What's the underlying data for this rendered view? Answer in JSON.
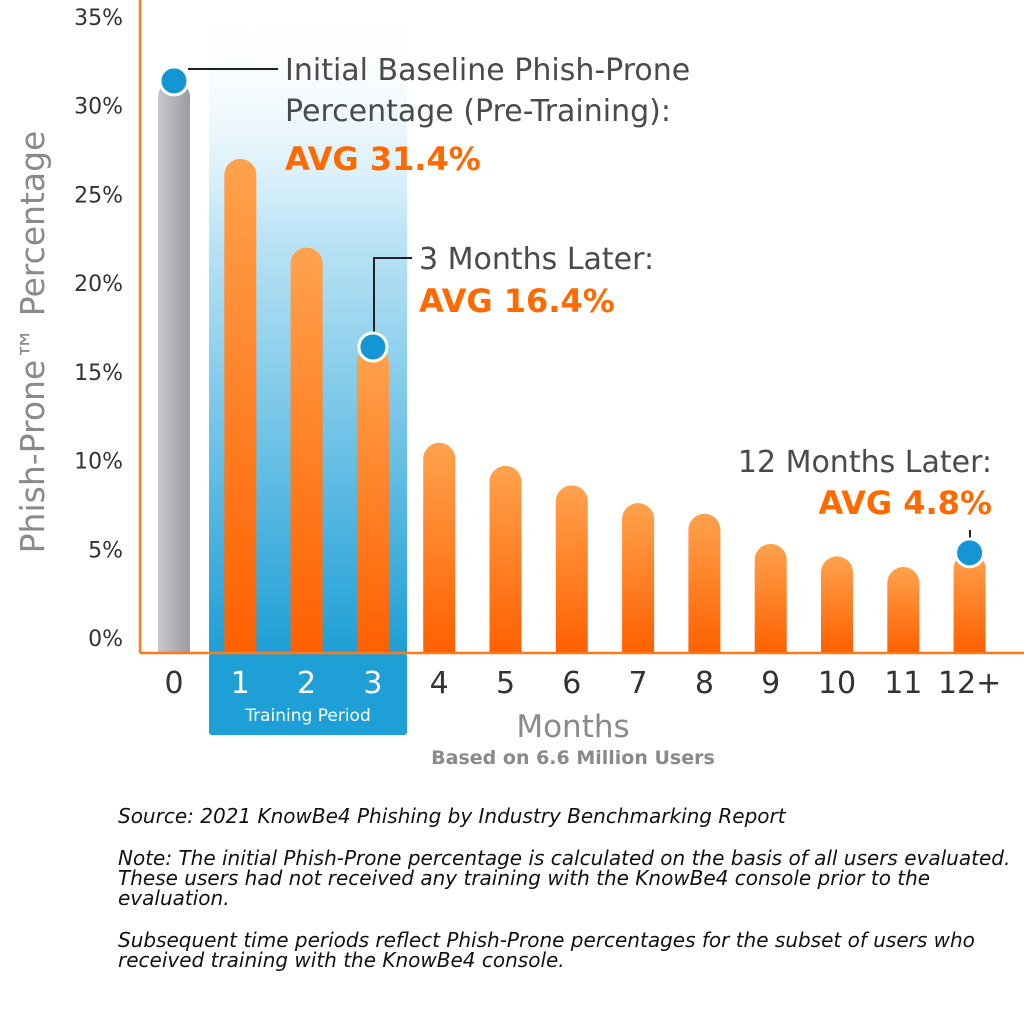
{
  "chart_data": {
    "type": "bar",
    "ylabel": "Phish-Prone™ Percentage",
    "xlabel": "Months",
    "subtitle": "Based on 6.6 Million Users",
    "ylim": [
      0,
      35
    ],
    "yticks": [
      "0%",
      "5%",
      "10%",
      "15%",
      "20%",
      "25%",
      "30%",
      "35%"
    ],
    "categories": [
      "0",
      "1",
      "2",
      "3",
      "4",
      "5",
      "6",
      "7",
      "8",
      "9",
      "10",
      "11",
      "12+"
    ],
    "values": [
      31.4,
      27.0,
      22.0,
      16.4,
      11.0,
      9.7,
      8.6,
      7.6,
      7.0,
      5.3,
      4.6,
      4.0,
      4.8
    ],
    "highlight_band": {
      "label": "Training Period",
      "categories": [
        "1",
        "2",
        "3"
      ]
    },
    "colors": {
      "baseline": "#a4a6aa",
      "bar": "#ff6a00",
      "band": "#1e9fd6",
      "marker": "#1496d4",
      "axis": "#ff7a1a"
    },
    "annotations": [
      {
        "category": "0",
        "lines": [
          "Initial Baseline Phish-Prone",
          "Percentage (Pre-Training):"
        ],
        "value_text": "AVG 31.4%"
      },
      {
        "category": "3",
        "lines": [
          "3 Months Later:"
        ],
        "value_text": "AVG 16.4%"
      },
      {
        "category": "12+",
        "lines": [
          "12 Months Later:"
        ],
        "value_text": "AVG 4.8%"
      }
    ]
  },
  "notes": {
    "source": "Source: 2021 KnowBe4 Phishing by Industry Benchmarking Report",
    "note": "Note: The initial Phish-Prone percentage is calculated on the basis of all users evaluated. These users had not received any training with the KnowBe4 console prior to the evaluation.",
    "subsequent": "Subsequent time periods reflect Phish-Prone percentages for the subset of users who received training with the KnowBe4 console."
  }
}
